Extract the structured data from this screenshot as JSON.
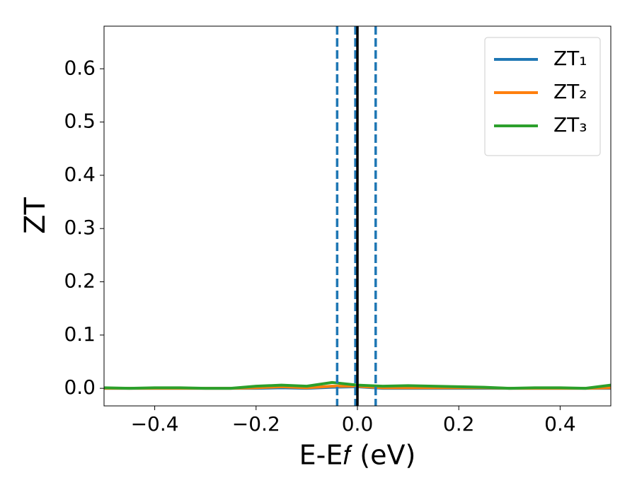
{
  "chart_data": {
    "type": "line",
    "xlabel": "E-E𝑓 (eV)",
    "ylabel": "ZT",
    "x": [
      -0.5,
      -0.45,
      -0.4,
      -0.35,
      -0.3,
      -0.25,
      -0.2,
      -0.15,
      -0.1,
      -0.05,
      0,
      0.05,
      0.1,
      0.15,
      0.2,
      0.25,
      0.3,
      0.35,
      0.4,
      0.45,
      0.5
    ],
    "series": [
      {
        "name": "ZT₁",
        "color": "#1f77b4",
        "values": [
          0,
          0,
          0,
          0,
          0,
          0,
          0,
          0.001,
          0,
          0.002,
          0.003,
          0,
          0,
          0,
          0,
          0,
          0,
          0,
          0,
          0,
          0
        ]
      },
      {
        "name": "ZT₂",
        "color": "#ff7f0e",
        "values": [
          0,
          0,
          0,
          0,
          0,
          0,
          0.001,
          0.003,
          0.001,
          0.004,
          0.004,
          0.001,
          0.001,
          0.001,
          0.001,
          0.001,
          0,
          0,
          0,
          0,
          0.001
        ]
      },
      {
        "name": "ZT₃",
        "color": "#2ca02c",
        "values": [
          0.001,
          0,
          0.001,
          0.001,
          0,
          0,
          0.004,
          0.006,
          0.004,
          0.011,
          0.006,
          0.004,
          0.005,
          0.004,
          0.003,
          0.002,
          0,
          0.001,
          0.001,
          0,
          0.006
        ]
      }
    ],
    "vlines": [
      {
        "x": -0.04,
        "color": "#1f77b4",
        "style": "dashed"
      },
      {
        "x": -0.004,
        "color": "#1f77b4",
        "style": "dashed"
      },
      {
        "x": 0.036,
        "color": "#1f77b4",
        "style": "dashed"
      },
      {
        "x": 0,
        "color": "#000000",
        "style": "solid"
      }
    ],
    "xlim": [
      -0.5,
      0.5
    ],
    "xticks": [
      {
        "value": -0.4,
        "label": "−0.4"
      },
      {
        "value": -0.2,
        "label": "−0.2"
      },
      {
        "value": 0,
        "label": "0.0"
      },
      0.2,
      0.4
    ],
    "ylim": [
      -0.033,
      0.68
    ],
    "yticks": [
      {
        "value": 0,
        "label": "0.0"
      },
      0.1,
      0.2,
      0.3,
      0.4,
      0.5,
      0.6
    ],
    "legend": "upper right"
  }
}
